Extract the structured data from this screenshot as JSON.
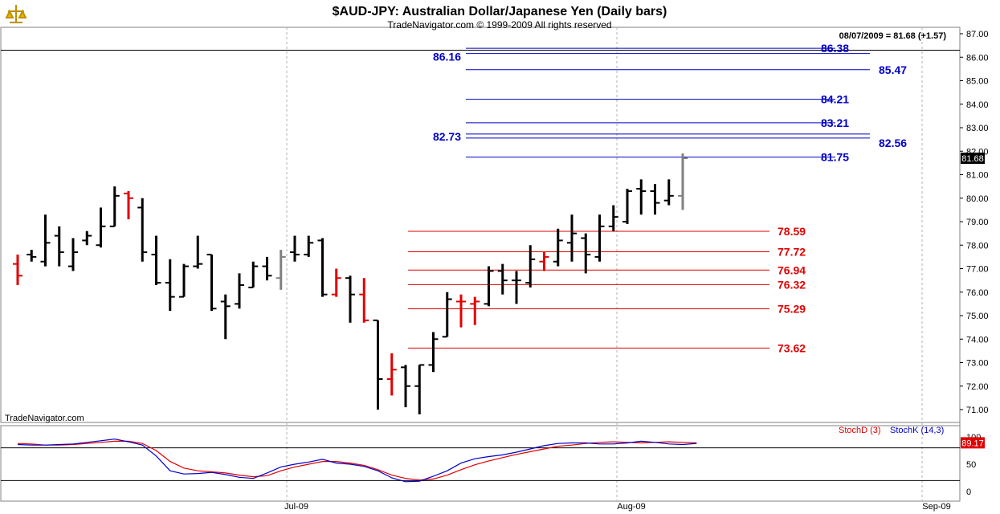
{
  "header": {
    "title": "$AUD-JPY:  Australian Dollar/Japanese Yen  (Daily bars)",
    "subtitle": "TradeNavigator.com © 1999-2009 All rights reserved",
    "quote": "08/07/2009 = 81.68 (+1.57)",
    "watermark": "TradeNavigator.com"
  },
  "colors": {
    "up_bar": "#000000",
    "reversal_bar": "#e00000",
    "neutral_bar": "#808080",
    "fib_blue": "#0000c8",
    "fib_red": "#e00000",
    "stoch_d": "#e00000",
    "stoch_k": "#0000c8"
  },
  "chart_data": [
    {
      "type": "ohlc",
      "title": "$AUD-JPY:  Australian Dollar/Japanese Yen  (Daily bars)",
      "ylim": [
        70.5,
        87
      ],
      "y_ticks": [
        "71.00",
        "72.00",
        "73.00",
        "74.00",
        "75.00",
        "76.00",
        "77.00",
        "78.00",
        "79.00",
        "80.00",
        "81.00",
        "82.00",
        "83.00",
        "84.00",
        "85.00",
        "86.00",
        "87.00"
      ],
      "x_ticks": [
        "Jul-09",
        "Aug-09",
        "Sep-09"
      ],
      "last_price_label": "81.68",
      "bars": [
        {
          "h": 77.6,
          "l": 76.3,
          "o": 77.2,
          "c": 76.7,
          "color": "red"
        },
        {
          "h": 77.8,
          "l": 77.3,
          "o": 77.6,
          "c": 77.5,
          "color": "black"
        },
        {
          "h": 79.3,
          "l": 77.1,
          "o": 77.3,
          "c": 78.1,
          "color": "black"
        },
        {
          "h": 78.8,
          "l": 77.1,
          "o": 78.4,
          "c": 77.7,
          "color": "black"
        },
        {
          "h": 78.3,
          "l": 76.9,
          "o": 77.1,
          "c": 77.7,
          "color": "black"
        },
        {
          "h": 78.6,
          "l": 78.0,
          "o": 78.2,
          "c": 78.4,
          "color": "black"
        },
        {
          "h": 79.6,
          "l": 77.9,
          "o": 78.0,
          "c": 78.8,
          "color": "black"
        },
        {
          "h": 80.5,
          "l": 78.8,
          "o": 78.8,
          "c": 80.1,
          "color": "black"
        },
        {
          "h": 80.3,
          "l": 79.1,
          "o": 80.2,
          "c": 80.0,
          "color": "red"
        },
        {
          "h": 80.0,
          "l": 77.3,
          "o": 79.6,
          "c": 77.7,
          "color": "black"
        },
        {
          "h": 78.4,
          "l": 76.3,
          "o": 77.6,
          "c": 76.4,
          "color": "black"
        },
        {
          "h": 77.4,
          "l": 75.2,
          "o": 76.4,
          "c": 75.8,
          "color": "black"
        },
        {
          "h": 77.2,
          "l": 75.8,
          "o": 75.8,
          "c": 77.1,
          "color": "black"
        },
        {
          "h": 78.4,
          "l": 77.0,
          "o": 77.1,
          "c": 77.2,
          "color": "black"
        },
        {
          "h": 77.6,
          "l": 75.2,
          "o": 77.6,
          "c": 75.3,
          "color": "black"
        },
        {
          "h": 75.9,
          "l": 74.0,
          "o": 75.6,
          "c": 75.4,
          "color": "black"
        },
        {
          "h": 76.8,
          "l": 75.3,
          "o": 75.5,
          "c": 76.3,
          "color": "black"
        },
        {
          "h": 77.3,
          "l": 76.2,
          "o": 76.2,
          "c": 77.1,
          "color": "black"
        },
        {
          "h": 77.5,
          "l": 76.5,
          "o": 77.1,
          "c": 76.7,
          "color": "black"
        },
        {
          "h": 77.8,
          "l": 76.1,
          "o": 76.6,
          "c": 77.5,
          "color": "gray"
        },
        {
          "h": 78.4,
          "l": 77.3,
          "o": 77.7,
          "c": 77.6,
          "color": "black"
        },
        {
          "h": 78.4,
          "l": 77.5,
          "o": 77.6,
          "c": 78.1,
          "color": "black"
        },
        {
          "h": 78.3,
          "l": 75.8,
          "o": 78.2,
          "c": 75.9,
          "color": "black"
        },
        {
          "h": 77.0,
          "l": 75.8,
          "o": 75.9,
          "c": 76.6,
          "color": "red"
        },
        {
          "h": 76.7,
          "l": 74.7,
          "o": 76.6,
          "c": 75.9,
          "color": "black"
        },
        {
          "h": 76.6,
          "l": 74.7,
          "o": 75.9,
          "c": 74.8,
          "color": "red"
        },
        {
          "h": 74.8,
          "l": 71.0,
          "o": 74.8,
          "c": 72.3,
          "color": "black"
        },
        {
          "h": 73.4,
          "l": 71.6,
          "o": 72.3,
          "c": 72.7,
          "color": "red"
        },
        {
          "h": 72.9,
          "l": 71.1,
          "o": 72.8,
          "c": 72.0,
          "color": "black"
        },
        {
          "h": 72.9,
          "l": 70.8,
          "o": 72.0,
          "c": 72.9,
          "color": "black"
        },
        {
          "h": 74.3,
          "l": 72.6,
          "o": 72.9,
          "c": 74.0,
          "color": "black"
        },
        {
          "h": 76.0,
          "l": 74.1,
          "o": 74.1,
          "c": 75.7,
          "color": "black"
        },
        {
          "h": 75.9,
          "l": 74.5,
          "o": 75.6,
          "c": 75.6,
          "color": "red"
        },
        {
          "h": 75.8,
          "l": 74.6,
          "o": 75.5,
          "c": 75.6,
          "color": "red"
        },
        {
          "h": 77.1,
          "l": 75.4,
          "o": 75.5,
          "c": 76.9,
          "color": "black"
        },
        {
          "h": 77.2,
          "l": 75.9,
          "o": 76.9,
          "c": 76.5,
          "color": "black"
        },
        {
          "h": 76.9,
          "l": 75.5,
          "o": 76.5,
          "c": 76.5,
          "color": "black"
        },
        {
          "h": 78.0,
          "l": 76.2,
          "o": 76.4,
          "c": 77.4,
          "color": "black"
        },
        {
          "h": 77.7,
          "l": 76.9,
          "o": 77.3,
          "c": 77.5,
          "color": "red"
        },
        {
          "h": 78.7,
          "l": 77.1,
          "o": 77.3,
          "c": 78.2,
          "color": "black"
        },
        {
          "h": 79.3,
          "l": 77.3,
          "o": 78.1,
          "c": 78.5,
          "color": "black"
        },
        {
          "h": 78.5,
          "l": 76.8,
          "o": 78.3,
          "c": 77.6,
          "color": "black"
        },
        {
          "h": 79.3,
          "l": 77.3,
          "o": 77.5,
          "c": 78.8,
          "color": "black"
        },
        {
          "h": 79.7,
          "l": 78.6,
          "o": 78.8,
          "c": 79.2,
          "color": "black"
        },
        {
          "h": 80.4,
          "l": 78.9,
          "o": 79.0,
          "c": 80.3,
          "color": "black"
        },
        {
          "h": 80.8,
          "l": 79.3,
          "o": 80.4,
          "c": 80.3,
          "color": "black"
        },
        {
          "h": 80.6,
          "l": 79.3,
          "o": 80.3,
          "c": 79.8,
          "color": "black"
        },
        {
          "h": 80.8,
          "l": 79.7,
          "o": 79.9,
          "c": 80.1,
          "color": "black"
        },
        {
          "h": 81.9,
          "l": 79.5,
          "o": 80.1,
          "c": 81.7,
          "color": "gray"
        }
      ],
      "horizontal_line": 86.3,
      "fib_levels_blue": [
        {
          "value": 86.38,
          "label": "86.38"
        },
        {
          "value": 86.16,
          "label": "86.16"
        },
        {
          "value": 85.47,
          "label": "85.47"
        },
        {
          "value": 84.21,
          "label": "84.21"
        },
        {
          "value": 83.21,
          "label": "83.21"
        },
        {
          "value": 82.73,
          "label": "82.73"
        },
        {
          "value": 82.56,
          "label": "82.56"
        },
        {
          "value": 81.75,
          "label": "81.75"
        }
      ],
      "fib_levels_red": [
        {
          "value": 78.59,
          "label": "78.59"
        },
        {
          "value": 77.72,
          "label": "77.72"
        },
        {
          "value": 76.94,
          "label": "76.94"
        },
        {
          "value": 76.32,
          "label": "76.32"
        },
        {
          "value": 75.29,
          "label": "75.29"
        },
        {
          "value": 73.62,
          "label": "73.62"
        }
      ]
    },
    {
      "type": "line",
      "ylim": [
        0,
        100
      ],
      "y_ticks": [
        "0",
        "50",
        "100"
      ],
      "reference_lines": [
        20,
        80
      ],
      "last_value_label": "89.17",
      "series": [
        {
          "name": "StochD (3)",
          "color": "red",
          "values": [
            88,
            87,
            85,
            85,
            86,
            88,
            90,
            92,
            92,
            88,
            75,
            55,
            43,
            38,
            36,
            34,
            30,
            27,
            29,
            38,
            45,
            50,
            55,
            55,
            52,
            48,
            40,
            30,
            24,
            21,
            23,
            30,
            40,
            49,
            56,
            62,
            68,
            73,
            78,
            83,
            85,
            88,
            90,
            91,
            90,
            89,
            90,
            91,
            90,
            89
          ]
        },
        {
          "name": "StochK (14,3)",
          "color": "blue",
          "values": [
            86,
            85,
            85,
            86,
            87,
            90,
            93,
            96,
            91,
            85,
            65,
            38,
            32,
            33,
            35,
            31,
            26,
            24,
            34,
            45,
            50,
            54,
            59,
            52,
            50,
            46,
            38,
            25,
            18,
            19,
            28,
            38,
            52,
            60,
            64,
            67,
            72,
            78,
            84,
            88,
            89,
            89,
            87,
            87,
            89,
            92,
            90,
            87,
            86,
            88
          ]
        }
      ]
    }
  ]
}
